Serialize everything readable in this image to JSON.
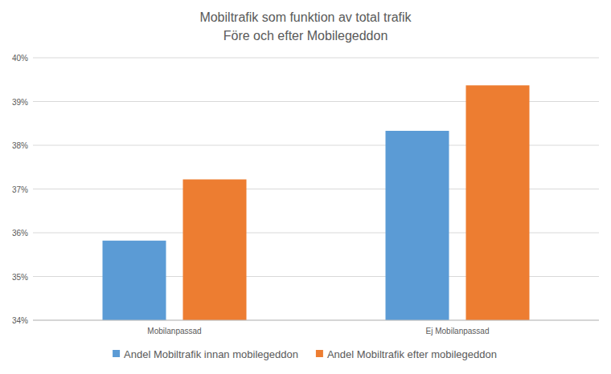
{
  "chart_data": {
    "type": "bar",
    "title": "Mobiltrafik som funktion av total trafik",
    "subtitle": "Före och efter Mobilegeddon",
    "categories": [
      "Mobilanpassad",
      "Ej Mobilanpassad"
    ],
    "series": [
      {
        "name": "Andel Mobiltrafik innan mobilegeddon",
        "color": "#5b9bd5",
        "values": [
          35.82,
          38.33
        ]
      },
      {
        "name": "Andel Mobiltrafik efter mobilegeddon",
        "color": "#ed7d31",
        "values": [
          37.22,
          39.37
        ]
      }
    ],
    "ylim": [
      34,
      40
    ],
    "yticks": [
      {
        "value": 34,
        "label": "34%"
      },
      {
        "value": 35,
        "label": "35%"
      },
      {
        "value": 36,
        "label": "36%"
      },
      {
        "value": 37,
        "label": "37%"
      },
      {
        "value": 38,
        "label": "38%"
      },
      {
        "value": 39,
        "label": "39%"
      },
      {
        "value": 40,
        "label": "40%"
      }
    ],
    "grid": true,
    "legend": "bottom"
  }
}
